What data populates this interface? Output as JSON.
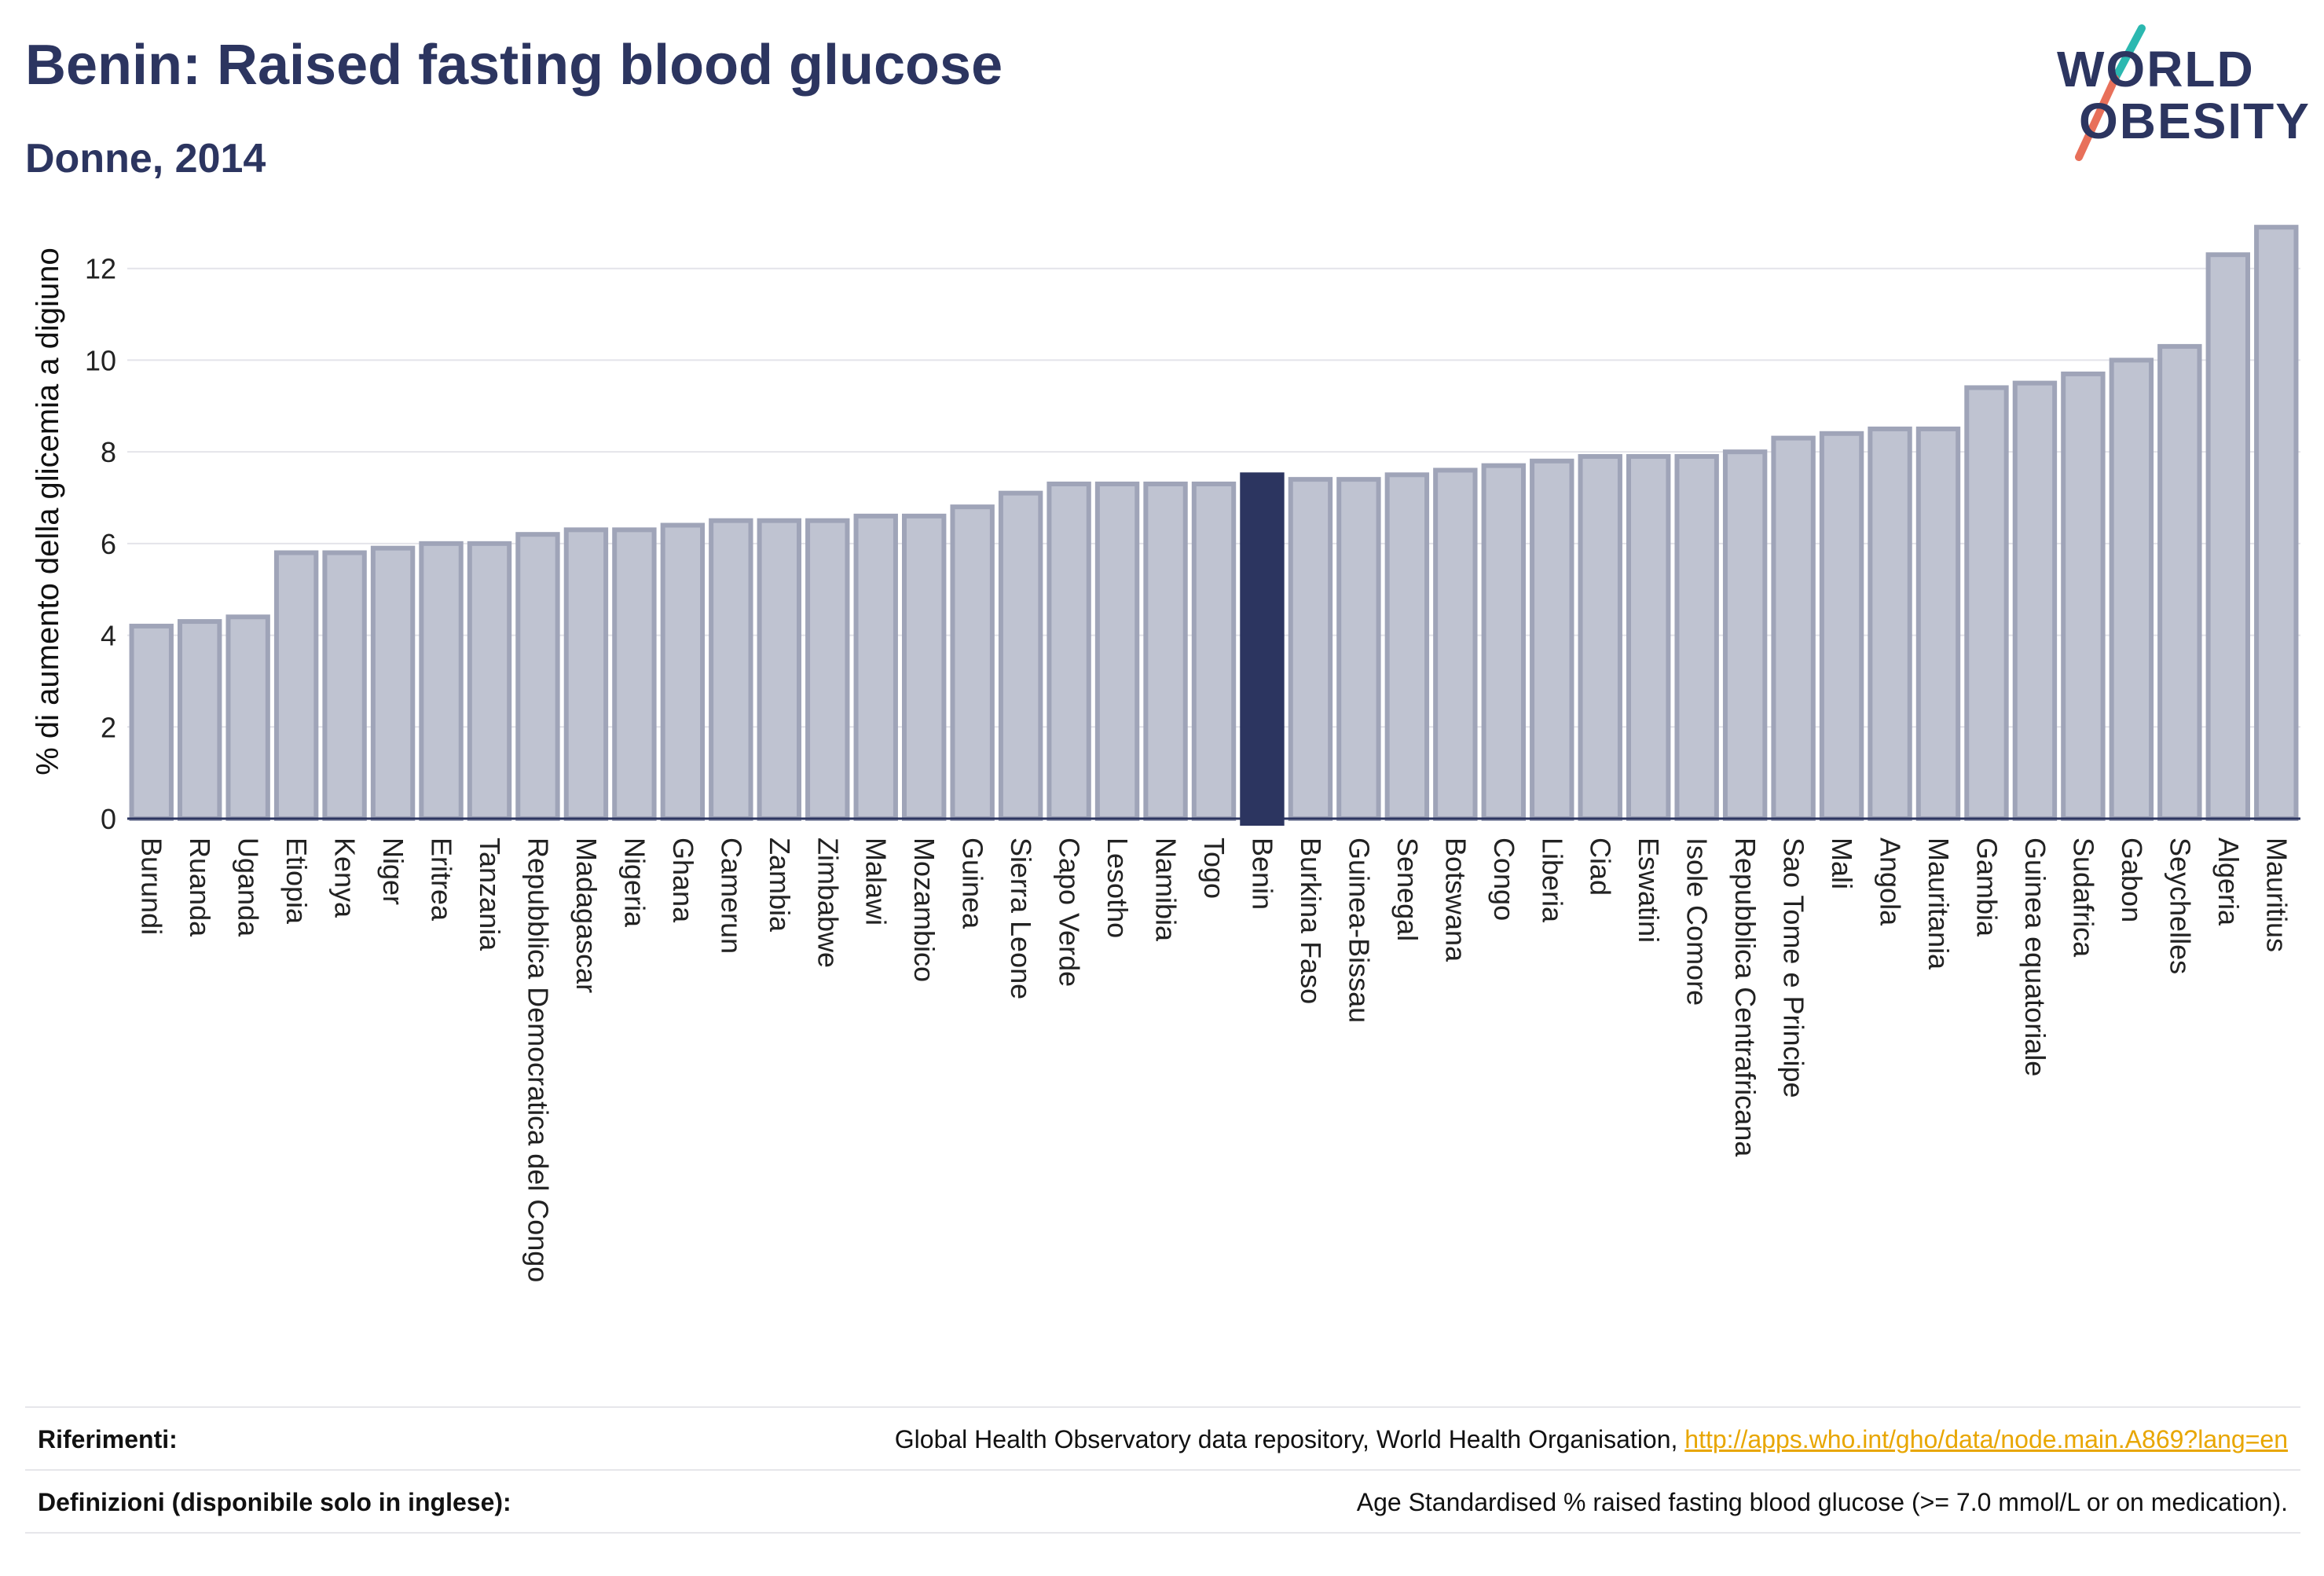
{
  "header": {
    "title": "Benin: Raised fasting blood glucose",
    "subtitle": "Donne, 2014"
  },
  "logo": {
    "line1": "WORLD",
    "line2": "OBESITY",
    "colors": {
      "text": "#2c3560",
      "slash_top": "#2bb8b0",
      "slash_bottom": "#e8705a"
    }
  },
  "colors": {
    "bar_fill": "#bfc3d1",
    "bar_stroke": "#9fa4b8",
    "highlight": "#2c3560",
    "grid": "#e4e4ea",
    "link": "#e8a600"
  },
  "chart_data": {
    "type": "bar",
    "ylabel": "% di aumento della glicemia a digiuno",
    "ylim": [
      0,
      13.4
    ],
    "yticks": [
      0,
      2,
      4,
      6,
      8,
      10,
      12
    ],
    "grid": true,
    "highlight": "Benin",
    "categories": [
      "Burundi",
      "Ruanda",
      "Uganda",
      "Etiopia",
      "Kenya",
      "Niger",
      "Eritrea",
      "Tanzania",
      "Repubblica Democratica del Congo",
      "Madagascar",
      "Nigeria",
      "Ghana",
      "Camerun",
      "Zambia",
      "Zimbabwe",
      "Malawi",
      "Mozambico",
      "Guinea",
      "Sierra Leone",
      "Capo Verde",
      "Lesotho",
      "Namibia",
      "Togo",
      "Benin",
      "Burkina Faso",
      "Guinea-Bissau",
      "Senegal",
      "Botswana",
      "Congo",
      "Liberia",
      "Ciad",
      "Eswatini",
      "Isole Comore",
      "Repubblica Centrafricana",
      "Sao Tome e Principe",
      "Mali",
      "Angola",
      "Mauritania",
      "Gambia",
      "Guinea equatoriale",
      "Sudafrica",
      "Gabon",
      "Seychelles",
      "Algeria",
      "Mauritius"
    ],
    "values": [
      4.2,
      4.3,
      4.4,
      5.8,
      5.8,
      5.9,
      6.0,
      6.0,
      6.2,
      6.3,
      6.3,
      6.4,
      6.5,
      6.5,
      6.5,
      6.6,
      6.6,
      6.8,
      7.1,
      7.3,
      7.3,
      7.3,
      7.3,
      7.5,
      7.4,
      7.4,
      7.5,
      7.6,
      7.7,
      7.8,
      7.9,
      7.9,
      7.9,
      8.0,
      8.3,
      8.4,
      8.5,
      8.5,
      9.4,
      9.5,
      9.7,
      10.0,
      10.3,
      12.3,
      12.9
    ]
  },
  "footer": {
    "references_label": "Riferimenti:",
    "references_text": "Global Health Observatory data repository, World Health Organisation, ",
    "references_link": "http://apps.who.int/gho/data/node.main.A869?lang=en",
    "definitions_label": "Definizioni (disponibile solo in inglese):",
    "definitions_text": "Age Standardised % raised fasting blood glucose (>= 7.0 mmol/L or on medication)."
  }
}
